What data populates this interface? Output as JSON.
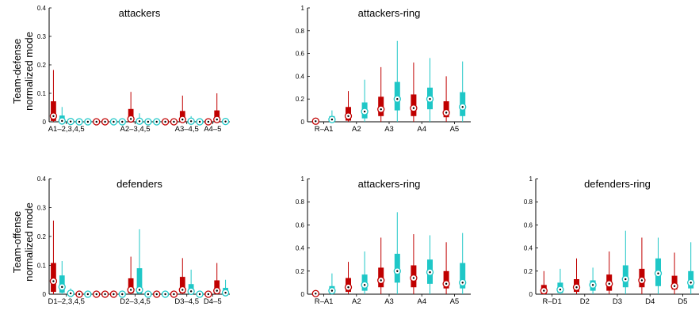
{
  "figure": {
    "row_labels": [
      {
        "line1": "Team-defense",
        "line2": "normalized mode"
      },
      {
        "line1": "Team-offense",
        "line2": "normalized mode"
      }
    ]
  },
  "chart_data": [
    {
      "type": "boxplot",
      "title": "attackers",
      "ylim": [
        0,
        0.4
      ],
      "yticks": [
        "0",
        "0.1",
        "0.2",
        "0.3",
        "0.4"
      ],
      "ytick_values": [
        0,
        0.1,
        0.2,
        0.3,
        0.4
      ],
      "n_positions": 21,
      "category_labels": [
        {
          "label": "A1–2,3,4,5",
          "pos": 2.5
        },
        {
          "label": "A2–3,4,5",
          "pos": 10.5
        },
        {
          "label": "A3–4,5",
          "pos": 16.5
        },
        {
          "label": "A4–5",
          "pos": 19.5
        }
      ],
      "boxes": [
        {
          "pos": 1,
          "color": "red",
          "whislo": 0,
          "q1": 0.003,
          "med": 0.02,
          "q3": 0.072,
          "whishi": 0.182
        },
        {
          "pos": 2,
          "color": "cyan",
          "whislo": 0,
          "q1": 0.0,
          "med": 0.003,
          "q3": 0.022,
          "whishi": 0.052
        },
        {
          "pos": 3,
          "color": "cyan",
          "whislo": 0,
          "q1": 0,
          "med": 0.001,
          "q3": 0.004,
          "whishi": 0.01
        },
        {
          "pos": 4,
          "color": "cyan",
          "whislo": 0,
          "q1": 0,
          "med": 0,
          "q3": 0,
          "whishi": 0
        },
        {
          "pos": 5,
          "color": "cyan",
          "whislo": 0,
          "q1": 0,
          "med": 0,
          "q3": 0,
          "whishi": 0
        },
        {
          "pos": 6,
          "color": "red",
          "whislo": 0,
          "q1": 0,
          "med": 0,
          "q3": 0,
          "whishi": 0
        },
        {
          "pos": 7,
          "color": "red",
          "whislo": 0,
          "q1": 0,
          "med": 0,
          "q3": 0,
          "whishi": 0
        },
        {
          "pos": 8,
          "color": "cyan",
          "whislo": 0,
          "q1": 0,
          "med": 0,
          "q3": 0,
          "whishi": 0
        },
        {
          "pos": 9,
          "color": "cyan",
          "whislo": 0,
          "q1": 0,
          "med": 0,
          "q3": 0,
          "whishi": 0
        },
        {
          "pos": 10,
          "color": "red",
          "whislo": 0,
          "q1": 0.002,
          "med": 0.01,
          "q3": 0.045,
          "whishi": 0.105
        },
        {
          "pos": 11,
          "color": "cyan",
          "whislo": 0,
          "q1": 0,
          "med": 0.002,
          "q3": 0.01,
          "whishi": 0.03
        },
        {
          "pos": 12,
          "color": "cyan",
          "whislo": 0,
          "q1": 0,
          "med": 0,
          "q3": 0,
          "whishi": 0
        },
        {
          "pos": 13,
          "color": "cyan",
          "whislo": 0,
          "q1": 0,
          "med": 0,
          "q3": 0,
          "whishi": 0
        },
        {
          "pos": 14,
          "color": "red",
          "whislo": 0,
          "q1": 0,
          "med": 0,
          "q3": 0,
          "whishi": 0
        },
        {
          "pos": 15,
          "color": "red",
          "whislo": 0,
          "q1": 0,
          "med": 0,
          "q3": 0,
          "whishi": 0
        },
        {
          "pos": 16,
          "color": "red",
          "whislo": 0,
          "q1": 0.002,
          "med": 0.008,
          "q3": 0.038,
          "whishi": 0.092
        },
        {
          "pos": 17,
          "color": "cyan",
          "whislo": 0,
          "q1": 0,
          "med": 0.002,
          "q3": 0.008,
          "whishi": 0.02
        },
        {
          "pos": 18,
          "color": "cyan",
          "whislo": 0,
          "q1": 0,
          "med": 0,
          "q3": 0,
          "whishi": 0
        },
        {
          "pos": 19,
          "color": "red",
          "whislo": 0,
          "q1": 0,
          "med": 0,
          "q3": 0,
          "whishi": 0
        },
        {
          "pos": 20,
          "color": "red",
          "whislo": 0,
          "q1": 0.002,
          "med": 0.008,
          "q3": 0.04,
          "whishi": 0.1
        },
        {
          "pos": 21,
          "color": "cyan",
          "whislo": 0,
          "q1": 0,
          "med": 0.001,
          "q3": 0.005,
          "whishi": 0.01
        }
      ]
    },
    {
      "type": "boxplot",
      "title": "attackers-ring",
      "ylim": [
        0,
        1
      ],
      "yticks": [
        "0",
        "0.2",
        "0.4",
        "0.6",
        "0.8",
        "1"
      ],
      "ytick_values": [
        0,
        0.2,
        0.4,
        0.6,
        0.8,
        1
      ],
      "n_positions": 10,
      "category_labels": [
        {
          "label": "R–A1",
          "pos": 1.5
        },
        {
          "label": "A2",
          "pos": 3.5
        },
        {
          "label": "A3",
          "pos": 5.5
        },
        {
          "label": "A4",
          "pos": 7.5
        },
        {
          "label": "A5",
          "pos": 9.5
        }
      ],
      "boxes": [
        {
          "pos": 1,
          "color": "red",
          "whislo": 0,
          "q1": 0,
          "med": 0.005,
          "q3": 0.01,
          "whishi": 0.02
        },
        {
          "pos": 2,
          "color": "cyan",
          "whislo": 0,
          "q1": 0,
          "med": 0.02,
          "q3": 0.05,
          "whishi": 0.1
        },
        {
          "pos": 3,
          "color": "red",
          "whislo": 0,
          "q1": 0.01,
          "med": 0.05,
          "q3": 0.13,
          "whishi": 0.27
        },
        {
          "pos": 4,
          "color": "cyan",
          "whislo": 0,
          "q1": 0.03,
          "med": 0.09,
          "q3": 0.17,
          "whishi": 0.37
        },
        {
          "pos": 5,
          "color": "red",
          "whislo": 0,
          "q1": 0.05,
          "med": 0.11,
          "q3": 0.22,
          "whishi": 0.48
        },
        {
          "pos": 6,
          "color": "cyan",
          "whislo": 0,
          "q1": 0.1,
          "med": 0.2,
          "q3": 0.35,
          "whishi": 0.71
        },
        {
          "pos": 7,
          "color": "red",
          "whislo": 0,
          "q1": 0.05,
          "med": 0.12,
          "q3": 0.24,
          "whishi": 0.52
        },
        {
          "pos": 8,
          "color": "cyan",
          "whislo": 0,
          "q1": 0.11,
          "med": 0.2,
          "q3": 0.3,
          "whishi": 0.56
        },
        {
          "pos": 9,
          "color": "red",
          "whislo": 0,
          "q1": 0.04,
          "med": 0.08,
          "q3": 0.18,
          "whishi": 0.4
        },
        {
          "pos": 10,
          "color": "cyan",
          "whislo": 0,
          "q1": 0.05,
          "med": 0.13,
          "q3": 0.26,
          "whishi": 0.53
        }
      ]
    },
    {
      "type": "boxplot",
      "title": "defenders",
      "ylim": [
        0,
        0.4
      ],
      "yticks": [
        "0",
        "0.1",
        "0.2",
        "0.3",
        "0.4"
      ],
      "ytick_values": [
        0,
        0.1,
        0.2,
        0.3,
        0.4
      ],
      "n_positions": 21,
      "category_labels": [
        {
          "label": "D1–2,3,4,5",
          "pos": 2.5
        },
        {
          "label": "D2–3,4,5",
          "pos": 10.5
        },
        {
          "label": "D3–4,5",
          "pos": 16.5
        },
        {
          "label": "D4–5",
          "pos": 19.5
        }
      ],
      "boxes": [
        {
          "pos": 1,
          "color": "red",
          "whislo": 0,
          "q1": 0.008,
          "med": 0.045,
          "q3": 0.108,
          "whishi": 0.255
        },
        {
          "pos": 2,
          "color": "cyan",
          "whislo": 0,
          "q1": 0.005,
          "med": 0.025,
          "q3": 0.065,
          "whishi": 0.115
        },
        {
          "pos": 3,
          "color": "cyan",
          "whislo": 0,
          "q1": 0,
          "med": 0.003,
          "q3": 0.01,
          "whishi": 0.02
        },
        {
          "pos": 4,
          "color": "red",
          "whislo": 0,
          "q1": 0,
          "med": 0,
          "q3": 0,
          "whishi": 0
        },
        {
          "pos": 5,
          "color": "cyan",
          "whislo": 0,
          "q1": 0,
          "med": 0,
          "q3": 0,
          "whishi": 0
        },
        {
          "pos": 6,
          "color": "red",
          "whislo": 0,
          "q1": 0,
          "med": 0,
          "q3": 0,
          "whishi": 0
        },
        {
          "pos": 7,
          "color": "red",
          "whislo": 0,
          "q1": 0,
          "med": 0,
          "q3": 0,
          "whishi": 0
        },
        {
          "pos": 8,
          "color": "red",
          "whislo": 0,
          "q1": 0,
          "med": 0,
          "q3": 0,
          "whishi": 0
        },
        {
          "pos": 9,
          "color": "cyan",
          "whislo": 0,
          "q1": 0,
          "med": 0,
          "q3": 0,
          "whishi": 0
        },
        {
          "pos": 10,
          "color": "red",
          "whislo": 0,
          "q1": 0.003,
          "med": 0.015,
          "q3": 0.055,
          "whishi": 0.13
        },
        {
          "pos": 11,
          "color": "cyan",
          "whislo": 0,
          "q1": 0.002,
          "med": 0.015,
          "q3": 0.09,
          "whishi": 0.225
        },
        {
          "pos": 12,
          "color": "cyan",
          "whislo": 0,
          "q1": 0,
          "med": 0,
          "q3": 0,
          "whishi": 0
        },
        {
          "pos": 13,
          "color": "red",
          "whislo": 0,
          "q1": 0,
          "med": 0,
          "q3": 0,
          "whishi": 0
        },
        {
          "pos": 14,
          "color": "cyan",
          "whislo": 0,
          "q1": 0,
          "med": 0,
          "q3": 0,
          "whishi": 0
        },
        {
          "pos": 15,
          "color": "red",
          "whislo": 0,
          "q1": 0,
          "med": 0,
          "q3": 0,
          "whishi": 0
        },
        {
          "pos": 16,
          "color": "red",
          "whislo": 0,
          "q1": 0.003,
          "med": 0.015,
          "q3": 0.06,
          "whishi": 0.125
        },
        {
          "pos": 17,
          "color": "cyan",
          "whislo": 0,
          "q1": 0.002,
          "med": 0.01,
          "q3": 0.035,
          "whishi": 0.085
        },
        {
          "pos": 18,
          "color": "cyan",
          "whislo": 0,
          "q1": 0,
          "med": 0,
          "q3": 0,
          "whishi": 0
        },
        {
          "pos": 19,
          "color": "red",
          "whislo": 0,
          "q1": 0,
          "med": 0,
          "q3": 0,
          "whishi": 0
        },
        {
          "pos": 20,
          "color": "red",
          "whislo": 0,
          "q1": 0.002,
          "med": 0.012,
          "q3": 0.048,
          "whishi": 0.108
        },
        {
          "pos": 21,
          "color": "cyan",
          "whislo": 0,
          "q1": 0.001,
          "med": 0.005,
          "q3": 0.022,
          "whishi": 0.05
        }
      ]
    },
    {
      "type": "boxplot",
      "title": "attackers-ring",
      "ylim": [
        0,
        1
      ],
      "yticks": [
        "0",
        "0.2",
        "0.4",
        "0.6",
        "0.8",
        "1"
      ],
      "ytick_values": [
        0,
        0.2,
        0.4,
        0.6,
        0.8,
        1
      ],
      "n_positions": 10,
      "category_labels": [
        {
          "label": "R–A1",
          "pos": 1.5
        },
        {
          "label": "A2",
          "pos": 3.5
        },
        {
          "label": "A3",
          "pos": 5.5
        },
        {
          "label": "A4",
          "pos": 7.5
        },
        {
          "label": "A5",
          "pos": 9.5
        }
      ],
      "boxes": [
        {
          "pos": 1,
          "color": "red",
          "whislo": 0,
          "q1": 0,
          "med": 0.005,
          "q3": 0.01,
          "whishi": 0.03
        },
        {
          "pos": 2,
          "color": "cyan",
          "whislo": 0,
          "q1": 0.01,
          "med": 0.03,
          "q3": 0.07,
          "whishi": 0.18
        },
        {
          "pos": 3,
          "color": "red",
          "whislo": 0,
          "q1": 0.02,
          "med": 0.06,
          "q3": 0.14,
          "whishi": 0.28
        },
        {
          "pos": 4,
          "color": "cyan",
          "whislo": 0,
          "q1": 0.03,
          "med": 0.08,
          "q3": 0.17,
          "whishi": 0.37
        },
        {
          "pos": 5,
          "color": "red",
          "whislo": 0,
          "q1": 0.06,
          "med": 0.12,
          "q3": 0.23,
          "whishi": 0.49
        },
        {
          "pos": 6,
          "color": "cyan",
          "whislo": 0,
          "q1": 0.1,
          "med": 0.2,
          "q3": 0.35,
          "whishi": 0.71
        },
        {
          "pos": 7,
          "color": "red",
          "whislo": 0,
          "q1": 0.06,
          "med": 0.14,
          "q3": 0.25,
          "whishi": 0.52
        },
        {
          "pos": 8,
          "color": "cyan",
          "whislo": 0,
          "q1": 0.09,
          "med": 0.19,
          "q3": 0.3,
          "whishi": 0.51
        },
        {
          "pos": 9,
          "color": "red",
          "whislo": 0,
          "q1": 0.05,
          "med": 0.09,
          "q3": 0.2,
          "whishi": 0.45
        },
        {
          "pos": 10,
          "color": "cyan",
          "whislo": 0,
          "q1": 0.05,
          "med": 0.1,
          "q3": 0.27,
          "whishi": 0.53
        }
      ]
    },
    {
      "type": "boxplot",
      "title": "defenders-ring",
      "ylim": [
        0,
        1
      ],
      "yticks": [
        "0",
        "0.2",
        "0.4",
        "0.6",
        "0.8",
        "1"
      ],
      "ytick_values": [
        0,
        0.2,
        0.4,
        0.6,
        0.8,
        1
      ],
      "n_positions": 10,
      "category_labels": [
        {
          "label": "R–D1",
          "pos": 1.5
        },
        {
          "label": "D2",
          "pos": 3.5
        },
        {
          "label": "D3",
          "pos": 5.5
        },
        {
          "label": "D4",
          "pos": 7.5
        },
        {
          "label": "D5",
          "pos": 9.5
        }
      ],
      "boxes": [
        {
          "pos": 1,
          "color": "red",
          "whislo": 0,
          "q1": 0,
          "med": 0.03,
          "q3": 0.08,
          "whishi": 0.2
        },
        {
          "pos": 2,
          "color": "cyan",
          "whislo": 0,
          "q1": 0.01,
          "med": 0.04,
          "q3": 0.1,
          "whishi": 0.22
        },
        {
          "pos": 3,
          "color": "red",
          "whislo": 0,
          "q1": 0.02,
          "med": 0.06,
          "q3": 0.13,
          "whishi": 0.31
        },
        {
          "pos": 4,
          "color": "cyan",
          "whislo": 0,
          "q1": 0.03,
          "med": 0.08,
          "q3": 0.12,
          "whishi": 0.23
        },
        {
          "pos": 5,
          "color": "red",
          "whislo": 0,
          "q1": 0.03,
          "med": 0.09,
          "q3": 0.17,
          "whishi": 0.37
        },
        {
          "pos": 6,
          "color": "cyan",
          "whislo": 0,
          "q1": 0.06,
          "med": 0.13,
          "q3": 0.25,
          "whishi": 0.55
        },
        {
          "pos": 7,
          "color": "red",
          "whislo": 0,
          "q1": 0.06,
          "med": 0.12,
          "q3": 0.22,
          "whishi": 0.49
        },
        {
          "pos": 8,
          "color": "cyan",
          "whislo": 0,
          "q1": 0.07,
          "med": 0.18,
          "q3": 0.31,
          "whishi": 0.49
        },
        {
          "pos": 9,
          "color": "red",
          "whislo": 0,
          "q1": 0.04,
          "med": 0.07,
          "q3": 0.16,
          "whishi": 0.36
        },
        {
          "pos": 10,
          "color": "cyan",
          "whislo": 0,
          "q1": 0.05,
          "med": 0.1,
          "q3": 0.2,
          "whishi": 0.45
        }
      ]
    }
  ],
  "colors": {
    "red": "#c00000",
    "cyan": "#1fc7c7",
    "axis": "#000000"
  }
}
